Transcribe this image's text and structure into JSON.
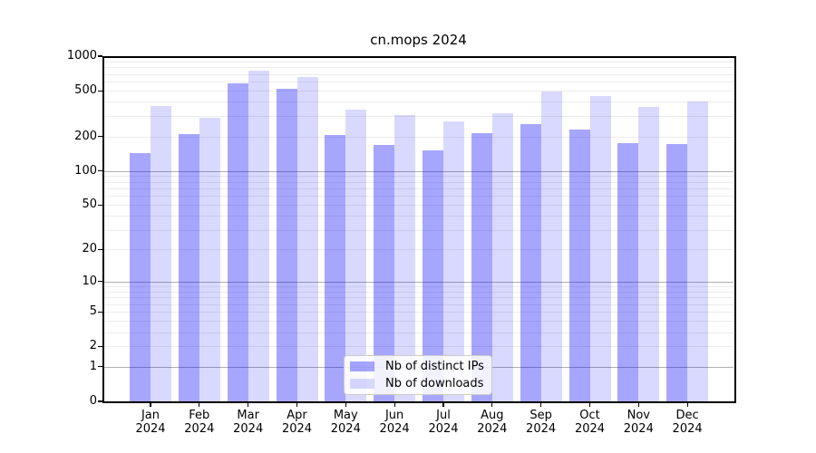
{
  "chart_data": {
    "type": "bar",
    "title": "cn.mops 2024",
    "categories": [
      "Jan",
      "Feb",
      "Mar",
      "Apr",
      "May",
      "Jun",
      "Jul",
      "Aug",
      "Sep",
      "Oct",
      "Nov",
      "Dec"
    ],
    "category_year": "2024",
    "series": [
      {
        "name": "Nb of distinct IPs",
        "color": "rgba(0,0,255,0.35)",
        "values": [
          142,
          210,
          580,
          520,
          205,
          170,
          152,
          215,
          257,
          230,
          174,
          172
        ]
      },
      {
        "name": "Nb of downloads",
        "color": "rgba(0,0,255,0.15)",
        "values": [
          370,
          290,
          750,
          660,
          340,
          310,
          270,
          320,
          495,
          450,
          360,
          400
        ]
      }
    ],
    "y_ticks": [
      1000,
      500,
      200,
      100,
      50,
      20,
      10,
      5,
      2,
      1,
      0
    ],
    "ylim": [
      0,
      1000
    ],
    "yscale": "log10(value+1)",
    "grid": {
      "major_lines": [
        1,
        10,
        100
      ],
      "minor_lines": [
        2,
        3,
        4,
        5,
        6,
        7,
        8,
        9,
        20,
        30,
        40,
        50,
        60,
        70,
        80,
        90,
        200,
        300,
        400,
        500,
        600,
        700,
        800,
        900
      ],
      "major_color": "#b0b0b0",
      "minor_color": "#ececec"
    },
    "legend_position": "lower center"
  }
}
